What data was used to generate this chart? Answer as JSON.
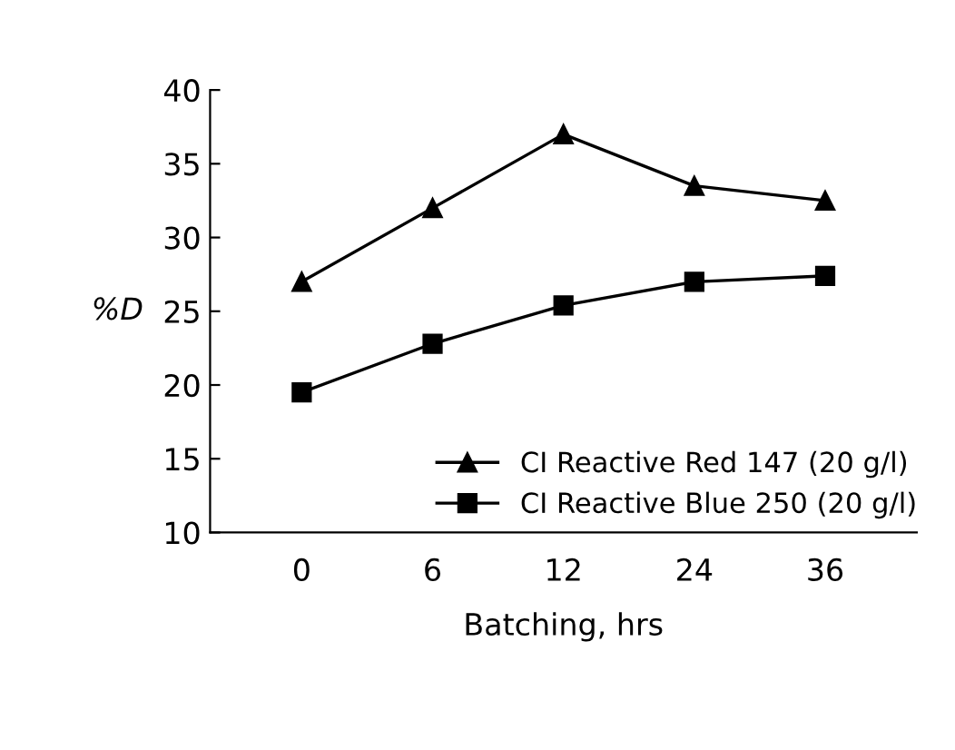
{
  "chart_data": {
    "type": "line",
    "xlabel": "Batching, hrs",
    "ylabel": "%D",
    "categories": [
      "0",
      "6",
      "12",
      "24",
      "36"
    ],
    "series": [
      {
        "name": "CI Reactive Red 147 (20 g/l)",
        "color": "#000000",
        "marker": "triangle",
        "values": [
          27,
          32,
          37,
          33.5,
          32.5
        ]
      },
      {
        "name": "CI Reactive Blue 250 (20 g/l)",
        "color": "#000000",
        "marker": "square",
        "values": [
          19.5,
          22.8,
          25.4,
          27,
          27.4
        ]
      }
    ],
    "ylim": [
      10,
      40
    ],
    "yticks": [
      10,
      15,
      20,
      25,
      30,
      35,
      40
    ],
    "grid": false,
    "legend": "bottom right",
    "line_style": "solid"
  }
}
